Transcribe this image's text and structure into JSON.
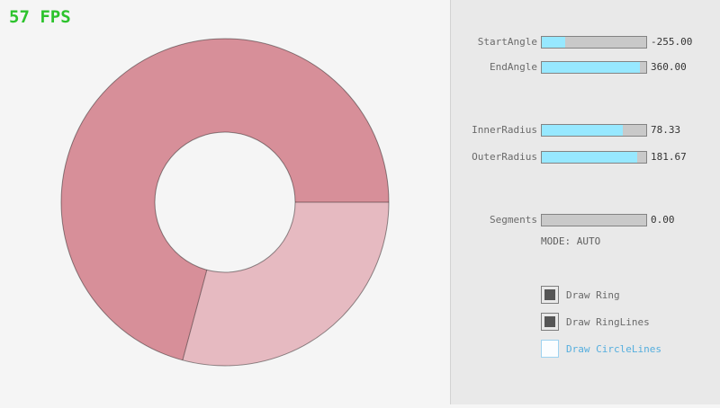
{
  "app": {
    "fps_label": "57 FPS"
  },
  "colors": {
    "fps_green": "#2dc32d",
    "ring_dark": "#d78f99",
    "ring_light": "#e6bac1",
    "ring_outline": "rgba(0,0,0,0.42)",
    "slider_fill_cyan": "#97e8ff",
    "slider_track_gray": "#c9c9c9",
    "panel_bg": "#e9e9e9",
    "canvas_bg": "#f5f5f5",
    "checkbox_blue": "#55aede"
  },
  "panel": {
    "sliders": [
      {
        "label": "StartAngle",
        "value": "-255.00",
        "fill_pct": 22
      },
      {
        "label": "EndAngle",
        "value": "360.00",
        "fill_pct": 94
      },
      {
        "label": "InnerRadius",
        "value": "78.33",
        "fill_pct": 78
      },
      {
        "label": "OuterRadius",
        "value": "181.67",
        "fill_pct": 91
      },
      {
        "label": "Segments",
        "value": "0.00",
        "fill_pct": 0
      }
    ],
    "mode_label": "MODE: AUTO",
    "checkboxes": [
      {
        "label": "Draw Ring",
        "checked": true
      },
      {
        "label": "Draw RingLines",
        "checked": true
      },
      {
        "label": "Draw CircleLines",
        "checked": false
      }
    ]
  }
}
